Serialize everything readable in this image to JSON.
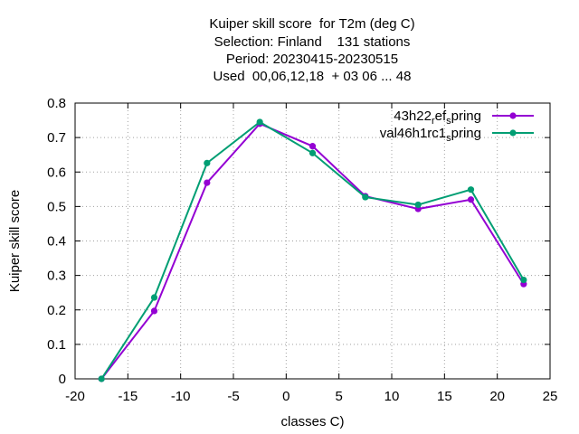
{
  "title_lines": [
    "Kuiper skill score  for T2m (deg C)",
    "Selection: Finland    131 stations",
    "Period: 20230415-20230515",
    "Used  00,06,12,18  + 03 06 ... 48"
  ],
  "chart_data": {
    "type": "line",
    "title": "Kuiper skill score  for T2m (deg C)",
    "xlabel": "classes C)",
    "ylabel": "Kuiper skill score",
    "xlim": [
      -20,
      25
    ],
    "ylim": [
      0,
      0.8
    ],
    "xticks": [
      -20,
      -15,
      -10,
      -5,
      0,
      5,
      10,
      15,
      20,
      25
    ],
    "yticks": [
      0,
      0.1,
      0.2,
      0.3,
      0.4,
      0.5,
      0.6,
      0.7,
      0.8
    ],
    "grid": true,
    "legend_position": "top-right",
    "x": [
      -17.5,
      -12.5,
      -7.5,
      -2.5,
      2.5,
      7.5,
      12.5,
      17.5,
      22.5
    ],
    "series": [
      {
        "name_parts": [
          {
            "text": "43h22",
            "shift": "none"
          },
          {
            "text": "r",
            "shift": "sub"
          },
          {
            "text": "ef",
            "shift": "none"
          },
          {
            "text": "s",
            "shift": "sub"
          },
          {
            "text": "pring",
            "shift": "none"
          }
        ],
        "color": "#9400d3",
        "values": [
          0.0,
          0.197,
          0.569,
          0.74,
          0.675,
          0.53,
          0.493,
          0.52,
          0.275
        ]
      },
      {
        "name_parts": [
          {
            "text": "val46h1rc1",
            "shift": "none"
          },
          {
            "text": "s",
            "shift": "sub"
          },
          {
            "text": "pring",
            "shift": "none"
          }
        ],
        "color": "#009e73",
        "values": [
          0.0,
          0.236,
          0.626,
          0.745,
          0.655,
          0.527,
          0.505,
          0.549,
          0.287
        ]
      }
    ]
  }
}
